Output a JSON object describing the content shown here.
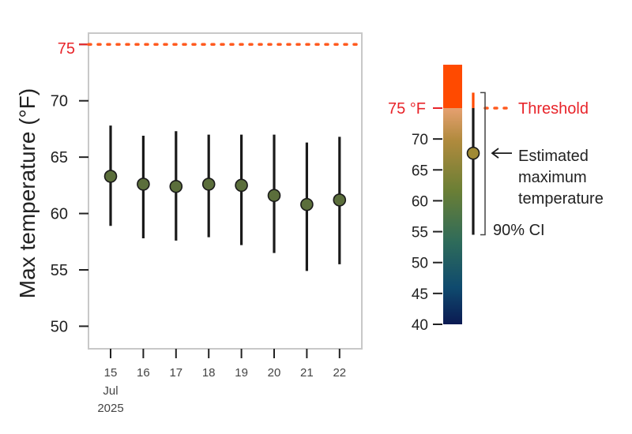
{
  "chart_data": {
    "type": "scatter",
    "ylabel": "Max temperature (°F)",
    "ylim": [
      48,
      76
    ],
    "yticks": [
      50,
      55,
      60,
      65,
      70,
      75
    ],
    "x": [
      "15",
      "16",
      "17",
      "18",
      "19",
      "20",
      "21",
      "22"
    ],
    "x_sublabels": [
      "Jul",
      "2025"
    ],
    "estimate": [
      63.3,
      62.6,
      62.4,
      62.6,
      62.5,
      61.6,
      60.8,
      61.2
    ],
    "ci_low": [
      58.9,
      57.8,
      57.6,
      57.9,
      57.2,
      56.5,
      54.9,
      55.5
    ],
    "ci_high": [
      67.8,
      66.9,
      67.3,
      67.0,
      67.0,
      67.0,
      66.3,
      66.8
    ],
    "threshold": 75,
    "threshold_label": "75",
    "marker_color": "#5b6e3b",
    "threshold_color": "#ff5a1f",
    "grid": false
  },
  "legend": {
    "scale_ticks": [
      40,
      45,
      50,
      55,
      60,
      65,
      70
    ],
    "scale_min": 40,
    "scale_max": 75,
    "threshold_tick_label": "75 °F",
    "threshold_text": "Threshold",
    "example_estimate": 67.7,
    "example_ci_low": 54.5,
    "example_ci_high": 77.5,
    "estimate_label_lines": [
      "Estimated",
      "maximum",
      "temperature"
    ],
    "ci_label": "90% CI",
    "gradient_colors": [
      "#0b1a52",
      "#0f4a6e",
      "#2e6b5a",
      "#6b7f35",
      "#b08a3d",
      "#e6a070",
      "#ff4a00"
    ]
  }
}
